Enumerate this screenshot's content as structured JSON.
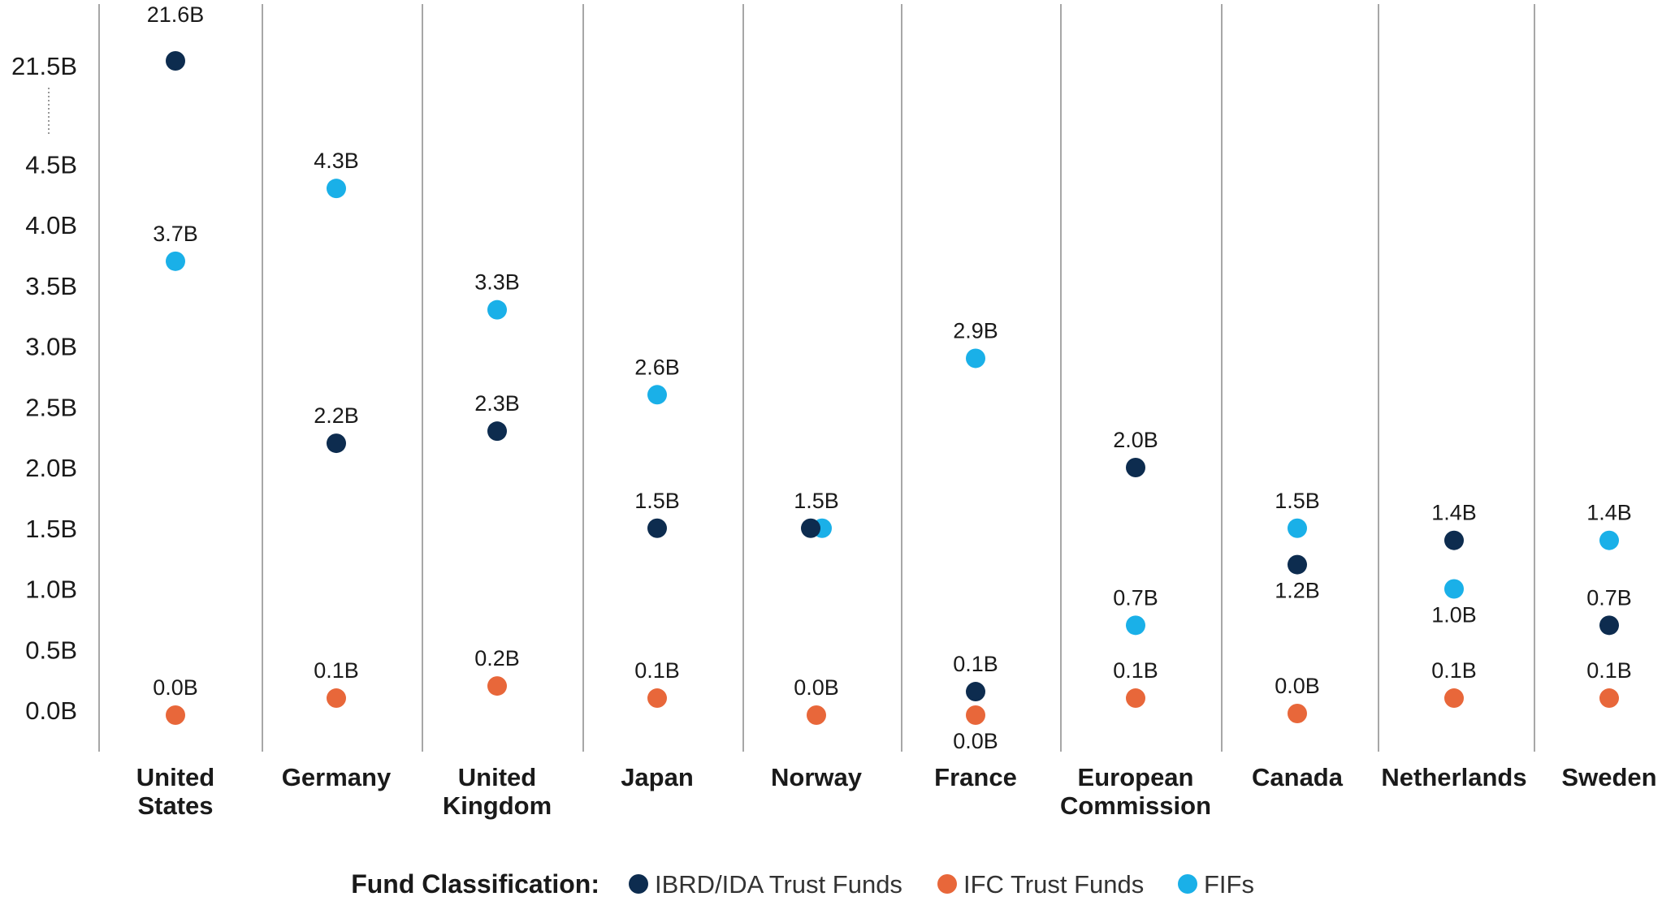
{
  "chart_data": {
    "type": "scatter",
    "categories": [
      [
        "United",
        "States"
      ],
      [
        "Germany"
      ],
      [
        "United",
        "Kingdom"
      ],
      [
        "Japan"
      ],
      [
        "Norway"
      ],
      [
        "France"
      ],
      [
        "European",
        "Commission"
      ],
      [
        "Canada"
      ],
      [
        "Netherlands"
      ],
      [
        "Sweden"
      ]
    ],
    "y_ticks": [
      "0.0B",
      "0.5B",
      "1.0B",
      "1.5B",
      "2.0B",
      "2.5B",
      "3.0B",
      "3.5B",
      "4.0B",
      "4.5B",
      "21.5B"
    ],
    "axis_break": {
      "from": 4.5,
      "to": 21.5
    },
    "ylim": [
      0,
      21.6
    ],
    "series": [
      {
        "name": "IBRD/IDA Trust Funds",
        "color": "#0d2c4f",
        "values": [
          21.6,
          2.2,
          2.3,
          1.5,
          1.5,
          0.1,
          2.0,
          1.2,
          1.4,
          0.7
        ],
        "labels": [
          "21.6B",
          "2.2B",
          "2.3B",
          "1.5B",
          "1.5B",
          "0.1B",
          "2.0B",
          "1.2B",
          "1.4B",
          "0.7B"
        ]
      },
      {
        "name": "IFC Trust Funds",
        "color": "#e8673a",
        "values": [
          0.0,
          0.1,
          0.2,
          0.1,
          0.0,
          0.0,
          0.1,
          0.0,
          0.1,
          0.1
        ],
        "labels": [
          "0.0B",
          "0.1B",
          "0.2B",
          "0.1B",
          "0.0B",
          "0.0B",
          "0.1B",
          "0.0B",
          "0.1B",
          "0.1B"
        ]
      },
      {
        "name": "FIFs",
        "color": "#1ab0e8",
        "values": [
          3.7,
          4.3,
          3.3,
          2.6,
          1.5,
          2.9,
          0.7,
          1.5,
          1.0,
          1.4
        ],
        "labels": [
          "3.7B",
          "4.3B",
          "3.3B",
          "2.6B",
          "",
          "2.9B",
          "0.7B",
          "1.5B",
          "1.0B",
          "1.4B"
        ]
      }
    ],
    "legend_title": "Fund Classification:",
    "legend_position": "bottom-center",
    "grid": false
  }
}
